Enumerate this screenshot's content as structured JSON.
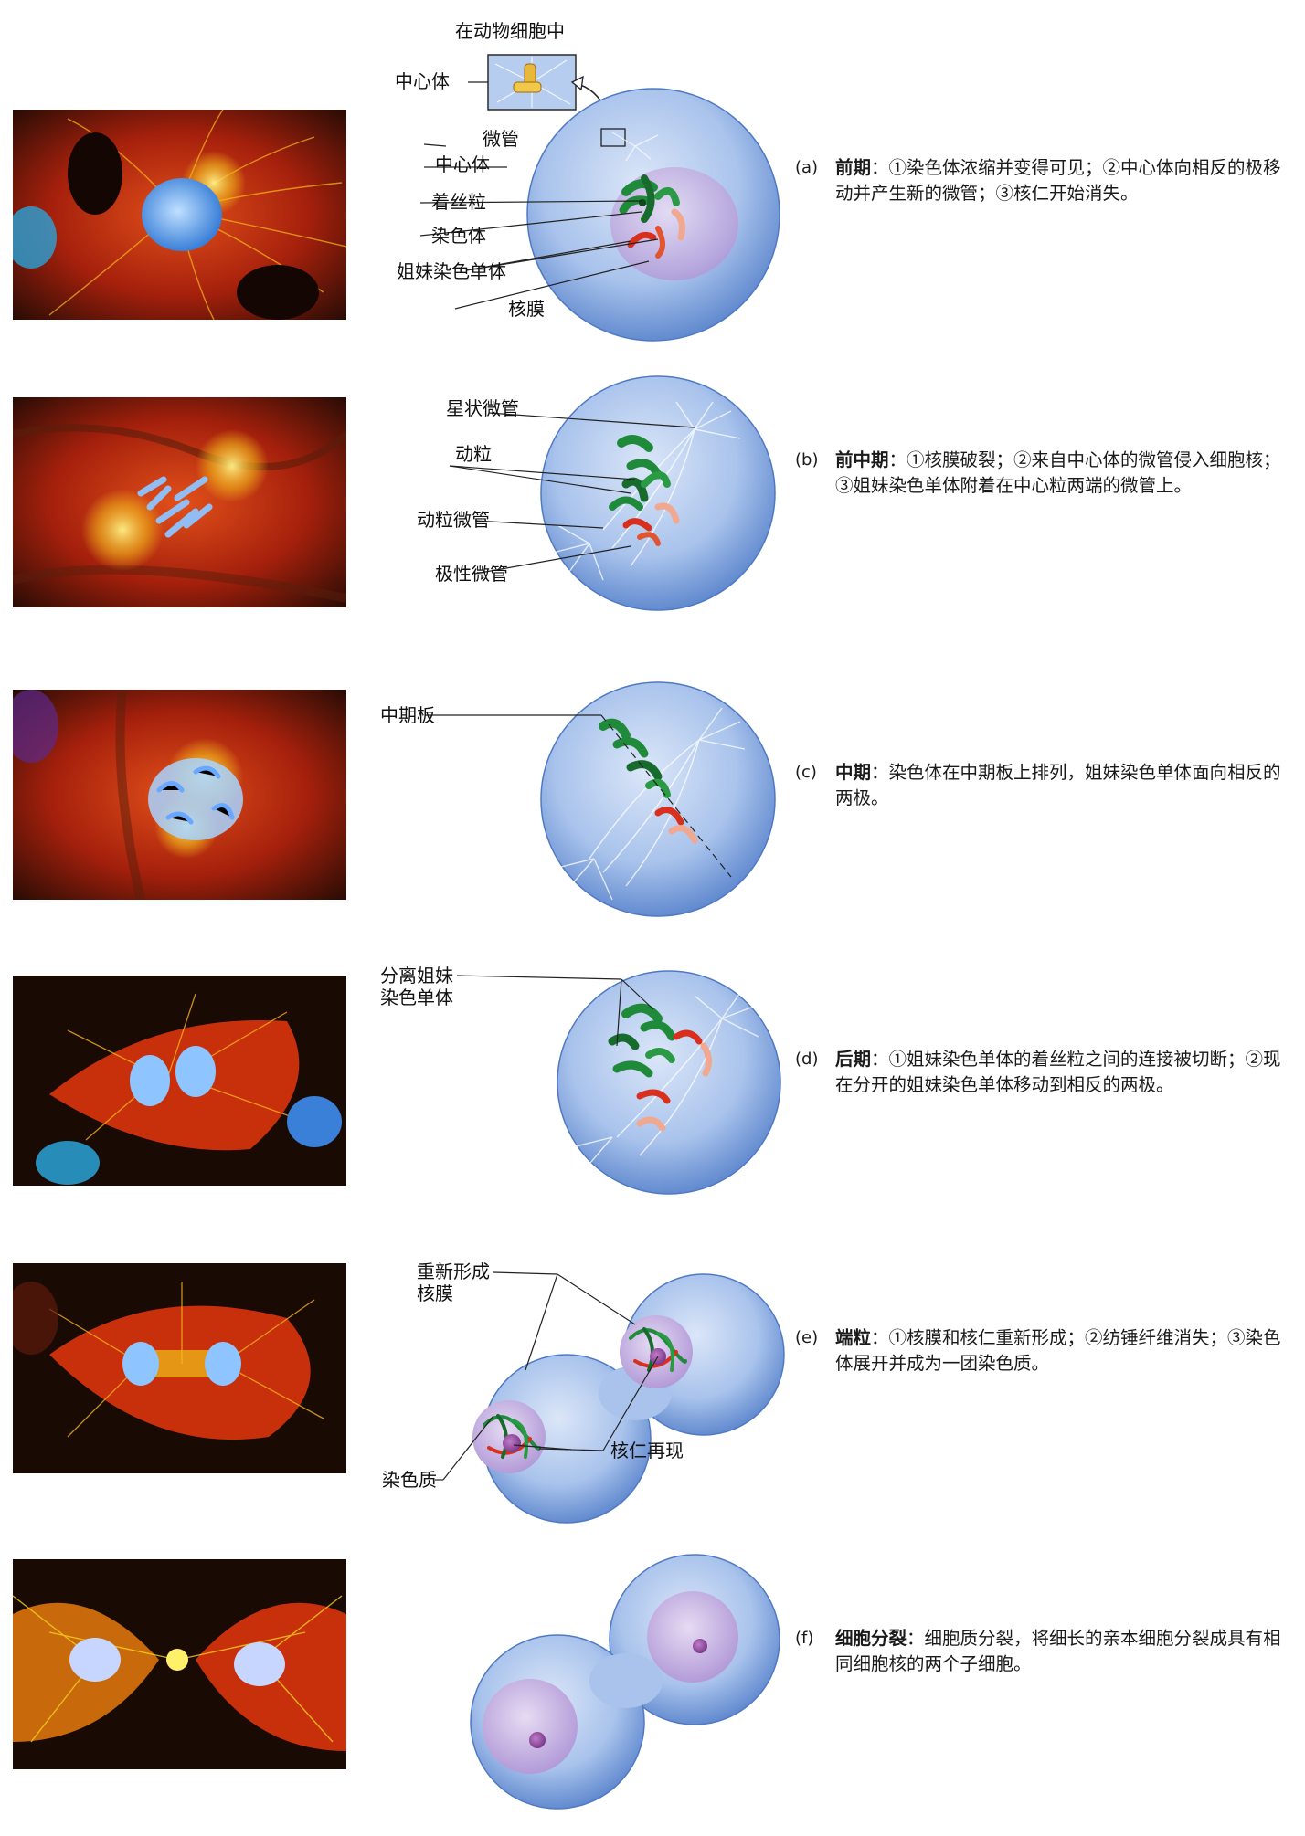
{
  "stages": [
    {
      "tag": "(a)",
      "title": "前期",
      "text": "：①染色体浓缩并变得可见；②中心体向相反的极移动并产生新的微管；③核仁开始消失。",
      "labels": {
        "animal_cell": "在动物细胞中",
        "centrosome_inset": "中心体",
        "microtubule": "微管",
        "centrosome": "中心体",
        "centromere": "着丝粒",
        "chromosome": "染色体",
        "sister_chromatids": "姐妹染色单体",
        "nuclear_envelope": "核膜"
      }
    },
    {
      "tag": "(b)",
      "title": "前中期",
      "text": "：①核膜破裂；②来自中心体的微管侵入细胞核；③姐妹染色单体附着在中心粒两端的微管上。",
      "labels": {
        "aster": "星状微管",
        "kinetochore": "动粒",
        "kinetochore_mt": "动粒微管",
        "polar_mt": "极性微管"
      }
    },
    {
      "tag": "(c)",
      "title": "中期",
      "text": "：染色体在中期板上排列，姐妹染色单体面向相反的两极。",
      "labels": {
        "metaphase_plate": "中期板"
      }
    },
    {
      "tag": "(d)",
      "title": "后期",
      "text": "：①姐妹染色单体的着丝粒之间的连接被切断；②现在分开的姐妹染色单体移动到相反的两极。",
      "labels": {
        "separating_line1": "分离姐妹",
        "separating_line2": "染色单体"
      }
    },
    {
      "tag": "(e)",
      "title": "端粒",
      "text": "：①核膜和核仁重新形成；②纺锤纤维消失；③染色体展开并成为一团染色质。",
      "labels": {
        "reform_line1": "重新形成",
        "reform_line2": "核膜",
        "nucleolus": "核仁再现",
        "chromatin": "染色质"
      }
    },
    {
      "tag": "(f)",
      "title": "细胞分裂",
      "text": "：细胞质分裂，将细长的亲本细胞分裂成具有相同细胞核的两个子细胞。",
      "labels": {}
    }
  ],
  "colors": {
    "cell_fill": "#a9c3ec",
    "cell_edge": "#4f79c4",
    "chromosome_green": "#1f8a3a",
    "chromosome_red": "#d8301c",
    "chromosome_pink": "#f0a890",
    "nucleus_purple": "#c9b4e4",
    "photo_red": "#c8200c",
    "photo_yellow": "#f2c21a",
    "photo_blue": "#7fb6ff"
  }
}
